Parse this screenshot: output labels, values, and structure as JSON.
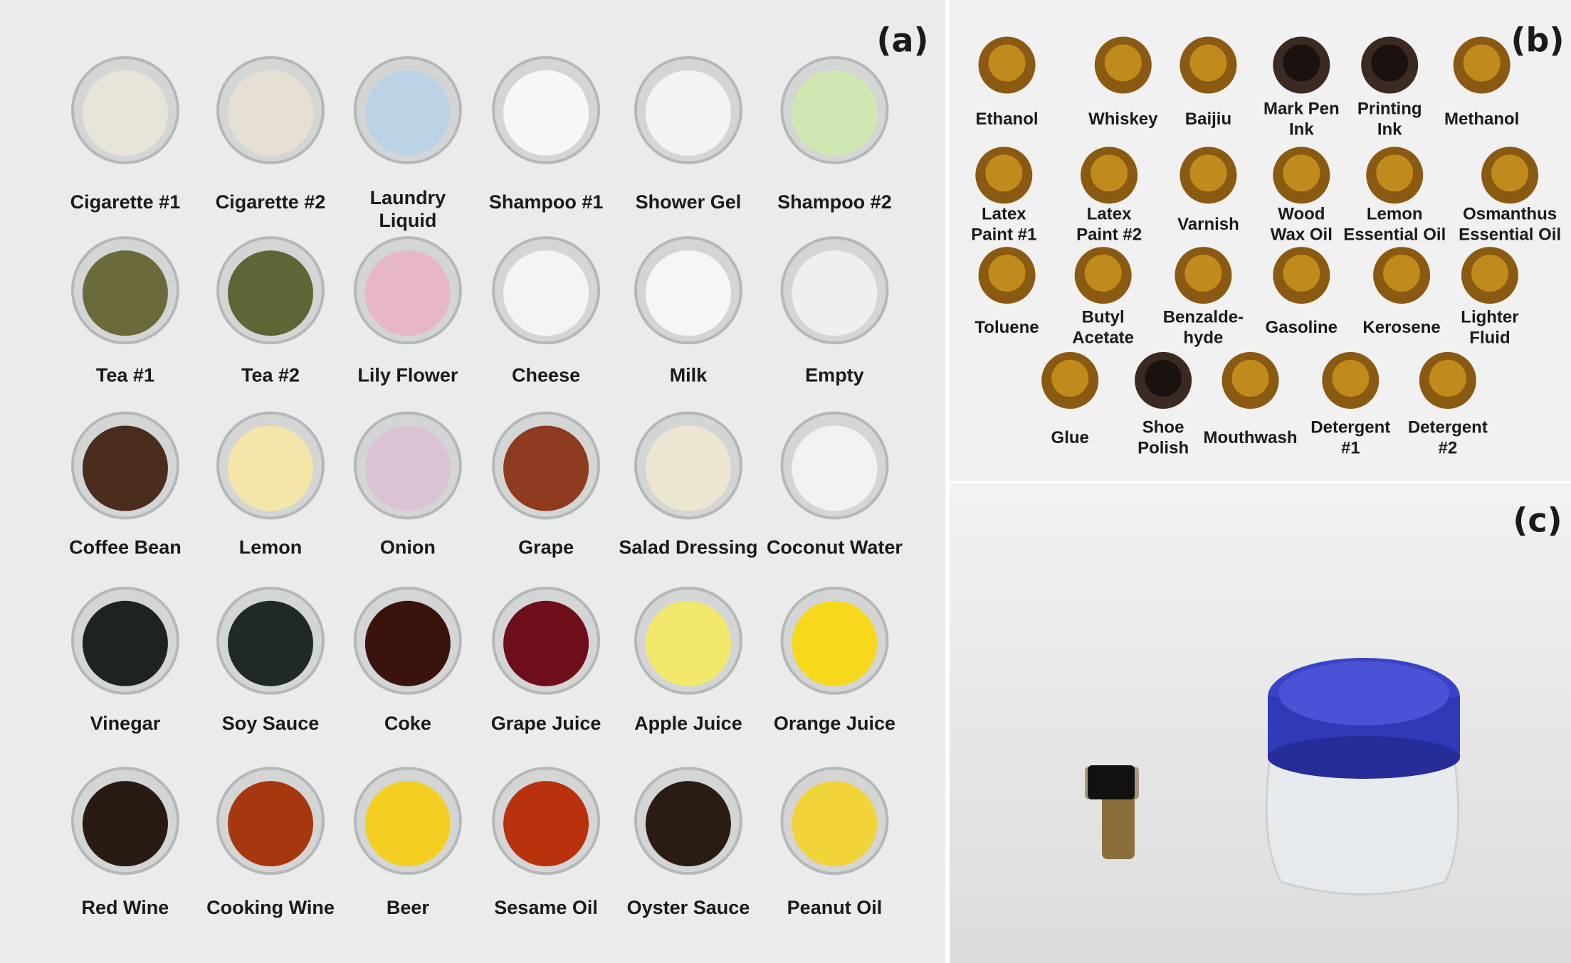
{
  "panel_a": {
    "label": "(a)",
    "items": [
      [
        "Cigarette #1"
      ],
      [
        "Cigarette #2"
      ],
      [
        "Laundry",
        "Liquid"
      ],
      [
        "Shampoo #1"
      ],
      [
        "Shower Gel"
      ],
      [
        "Shampoo #2"
      ],
      [
        "Tea #1"
      ],
      [
        "Tea #2"
      ],
      [
        "Lily Flower"
      ],
      [
        "Cheese"
      ],
      [
        "Milk"
      ],
      [
        "Empty"
      ],
      [
        "Coffee Bean"
      ],
      [
        "Lemon"
      ],
      [
        "Onion"
      ],
      [
        "Grape"
      ],
      [
        "Salad Dressing"
      ],
      [
        "Coconut Water"
      ],
      [
        "Vinegar"
      ],
      [
        "Soy Sauce"
      ],
      [
        "Coke"
      ],
      [
        "Grape Juice"
      ],
      [
        "Apple Juice"
      ],
      [
        "Orange Juice"
      ],
      [
        "Red Wine"
      ],
      [
        "Cooking Wine"
      ],
      [
        "Beer"
      ],
      [
        "Sesame Oil"
      ],
      [
        "Oyster Sauce"
      ],
      [
        "Peanut Oil"
      ]
    ]
  },
  "panel_b": {
    "label": "(b)",
    "items": [
      [
        "Ethanol"
      ],
      [
        "Whiskey"
      ],
      [
        "Baijiu"
      ],
      [
        "Mark Pen",
        "Ink"
      ],
      [
        "Printing",
        "Ink"
      ],
      [
        "Methanol"
      ],
      [
        "Latex",
        "Paint #1"
      ],
      [
        "Latex",
        "Paint #2"
      ],
      [
        "Varnish"
      ],
      [
        "Wood",
        "Wax Oil"
      ],
      [
        "Lemon",
        "Essential Oil"
      ],
      [
        "Osmanthus",
        "Essential Oil"
      ],
      [
        "Toluene"
      ],
      [
        "Butyl",
        "Acetate"
      ],
      [
        "Benzalde-",
        "hyde"
      ],
      [
        "Gasoline"
      ],
      [
        "Kerosene"
      ],
      [
        "Lighter",
        "Fluid"
      ],
      [
        "Glue"
      ],
      [
        "Shoe",
        "Polish"
      ],
      [
        "Mouthwash"
      ],
      [
        "Detergent",
        "#1"
      ],
      [
        "Detergent",
        "#2"
      ]
    ]
  },
  "panel_c": {
    "label": "(c)"
  }
}
